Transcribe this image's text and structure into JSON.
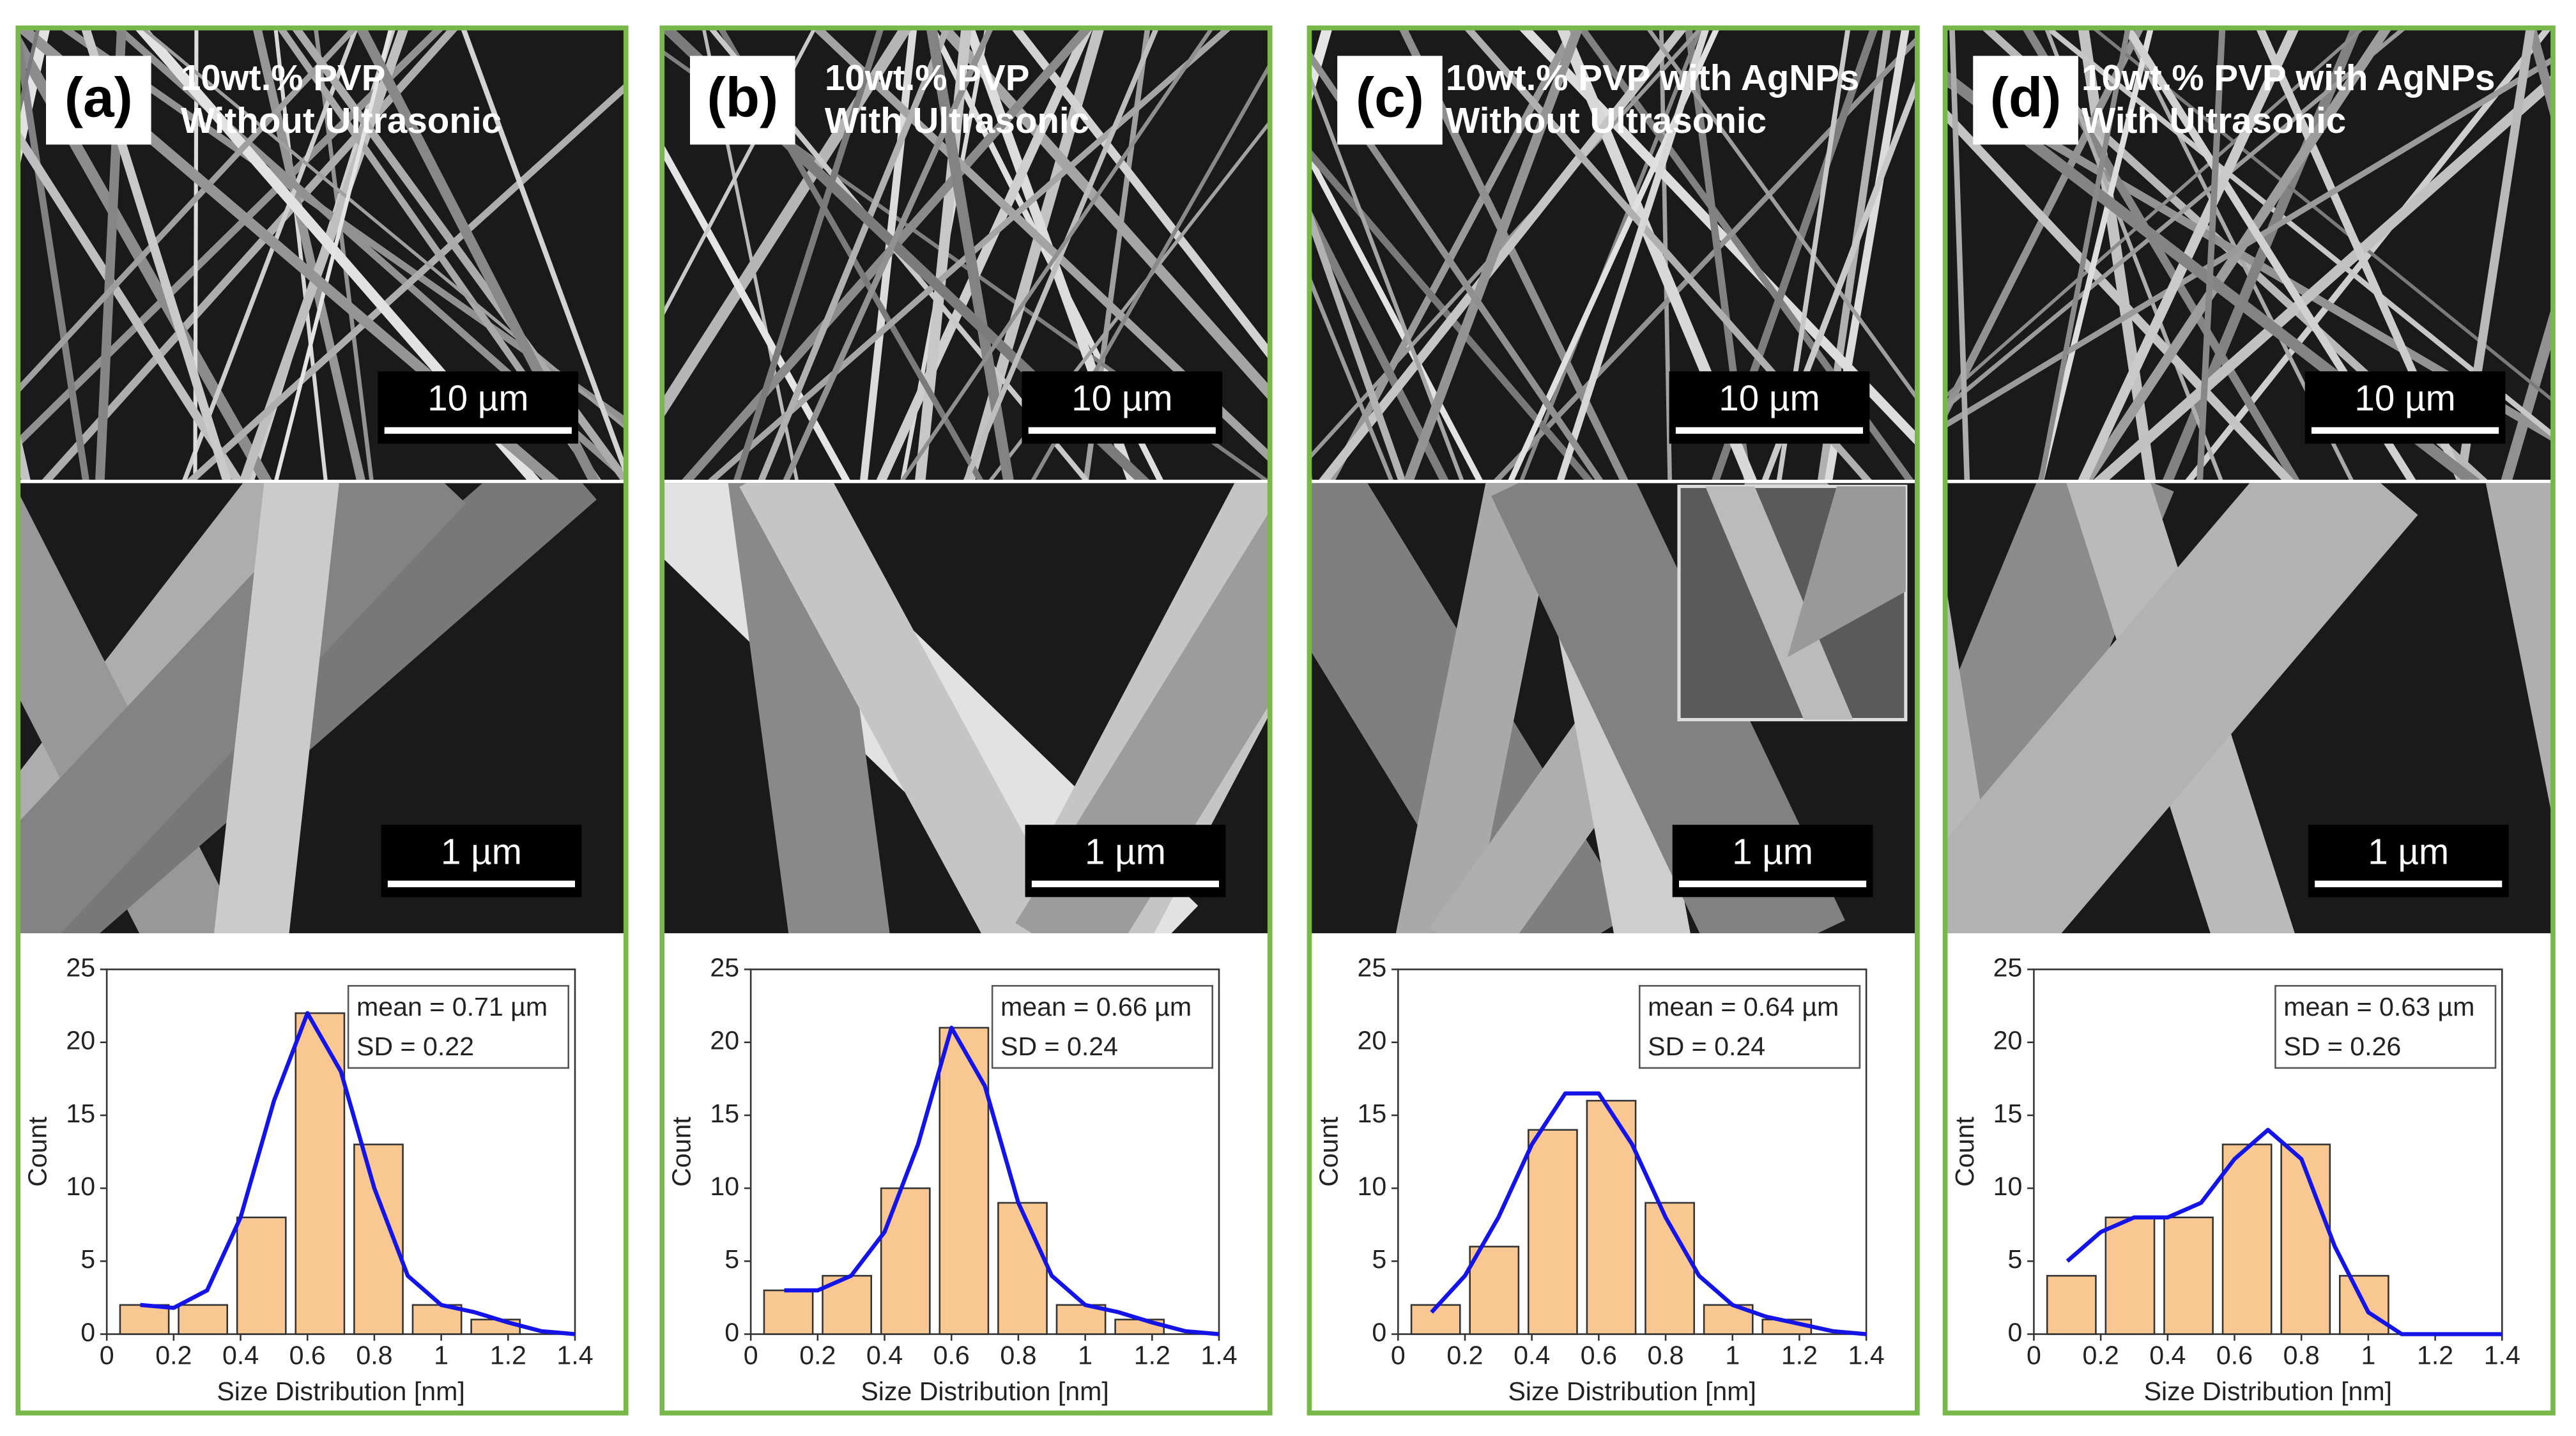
{
  "chart_data": [
    {
      "type": "histogram",
      "label": "(a)",
      "title": [
        "10wt.% PVP",
        "Without Ultrasonic"
      ],
      "scale_bars": [
        "10 µm",
        "1 µm"
      ],
      "annotation": [
        "mean = 0.71 µm",
        "SD = 0.22"
      ],
      "bins": [
        0.025,
        0.2,
        0.375,
        0.55,
        0.725,
        0.9,
        1.075,
        1.25
      ],
      "values": [
        2,
        2,
        8,
        22,
        13,
        2,
        1
      ],
      "color": "#f9c892",
      "fit": {
        "x": [
          0.1,
          0.2,
          0.3,
          0.4,
          0.5,
          0.6,
          0.7,
          0.8,
          0.9,
          1.0,
          1.1,
          1.2,
          1.3,
          1.4
        ],
        "values": [
          2,
          1.8,
          3,
          8,
          16,
          22,
          18,
          10,
          4,
          2,
          1.5,
          0.8,
          0.2,
          0
        ],
        "color": "#1414e6"
      },
      "xlim": [
        0,
        1.4
      ],
      "xticks": [
        0,
        0.2,
        0.4,
        0.6,
        0.8,
        1.0,
        1.2,
        1.4
      ],
      "ylim": [
        0,
        25
      ],
      "yticks": [
        0,
        5,
        10,
        15,
        20,
        25
      ],
      "xlabel": "Size Distribution [nm]",
      "ylabel": "Count"
    },
    {
      "type": "histogram",
      "label": "(b)",
      "title": [
        "10wt.% PVP",
        "With Ultrasonic"
      ],
      "scale_bars": [
        "10 µm",
        "1 µm"
      ],
      "annotation": [
        "mean = 0.66 µm",
        "SD = 0.24"
      ],
      "bins": [
        0.025,
        0.2,
        0.375,
        0.55,
        0.725,
        0.9,
        1.075,
        1.25
      ],
      "values": [
        3,
        4,
        10,
        21,
        9,
        2,
        1
      ],
      "color": "#f9c892",
      "fit": {
        "x": [
          0.1,
          0.2,
          0.3,
          0.4,
          0.5,
          0.6,
          0.7,
          0.8,
          0.9,
          1.0,
          1.1,
          1.2,
          1.3,
          1.4
        ],
        "values": [
          3,
          3,
          4,
          7,
          13,
          21,
          17,
          9,
          4,
          2,
          1.5,
          0.8,
          0.2,
          0
        ],
        "color": "#1414e6"
      },
      "xlim": [
        0,
        1.4
      ],
      "xticks": [
        0,
        0.2,
        0.4,
        0.6,
        0.8,
        1.0,
        1.2,
        1.4
      ],
      "ylim": [
        0,
        25
      ],
      "yticks": [
        0,
        5,
        10,
        15,
        20,
        25
      ],
      "xlabel": "Size Distribution [nm]",
      "ylabel": "Count"
    },
    {
      "type": "histogram",
      "label": "(c)",
      "title": [
        "10wt.% PVP with AgNPs",
        "Without Ultrasonic"
      ],
      "scale_bars": [
        "10 µm",
        "1 µm"
      ],
      "annotation": [
        "mean = 0.64 µm",
        "SD = 0.24"
      ],
      "bins": [
        0.025,
        0.2,
        0.375,
        0.55,
        0.725,
        0.9,
        1.075,
        1.25
      ],
      "values": [
        2,
        6,
        14,
        16,
        9,
        2,
        1
      ],
      "color": "#f9c892",
      "fit": {
        "x": [
          0.1,
          0.2,
          0.3,
          0.4,
          0.5,
          0.6,
          0.7,
          0.8,
          0.9,
          1.0,
          1.1,
          1.2,
          1.3,
          1.4
        ],
        "values": [
          1.5,
          4,
          8,
          13,
          16.5,
          16.5,
          13,
          8,
          4,
          2,
          1.2,
          0.7,
          0.2,
          0
        ],
        "color": "#1414e6"
      },
      "xlim": [
        0,
        1.4
      ],
      "xticks": [
        0,
        0.2,
        0.4,
        0.6,
        0.8,
        1.0,
        1.2,
        1.4
      ],
      "ylim": [
        0,
        25
      ],
      "yticks": [
        0,
        5,
        10,
        15,
        20,
        25
      ],
      "xlabel": "Size Distribution [nm]",
      "ylabel": "Count"
    },
    {
      "type": "histogram",
      "label": "(d)",
      "title": [
        "10wt.% PVP with AgNPs",
        "With Ultrasonic"
      ],
      "scale_bars": [
        "10 µm",
        "1 µm"
      ],
      "annotation": [
        "mean = 0.63 µm",
        "SD = 0.26"
      ],
      "bins": [
        0.025,
        0.2,
        0.375,
        0.55,
        0.725,
        0.9,
        1.075
      ],
      "values": [
        4,
        8,
        8,
        13,
        13,
        4
      ],
      "color": "#f9c892",
      "fit": {
        "x": [
          0.1,
          0.2,
          0.3,
          0.4,
          0.5,
          0.6,
          0.7,
          0.8,
          0.9,
          1.0,
          1.1,
          1.2,
          1.3,
          1.4
        ],
        "values": [
          5,
          7,
          8,
          8,
          9,
          12,
          14,
          12,
          6,
          1.5,
          0,
          0,
          0,
          0
        ],
        "color": "#1414e6"
      },
      "xlim": [
        0,
        1.4
      ],
      "xticks": [
        0,
        0.2,
        0.4,
        0.6,
        0.8,
        1.0,
        1.2,
        1.4
      ],
      "ylim": [
        0,
        25
      ],
      "yticks": [
        0,
        5,
        10,
        15,
        20,
        25
      ],
      "xlabel": "Size Distribution [nm]",
      "ylabel": "Count"
    }
  ]
}
